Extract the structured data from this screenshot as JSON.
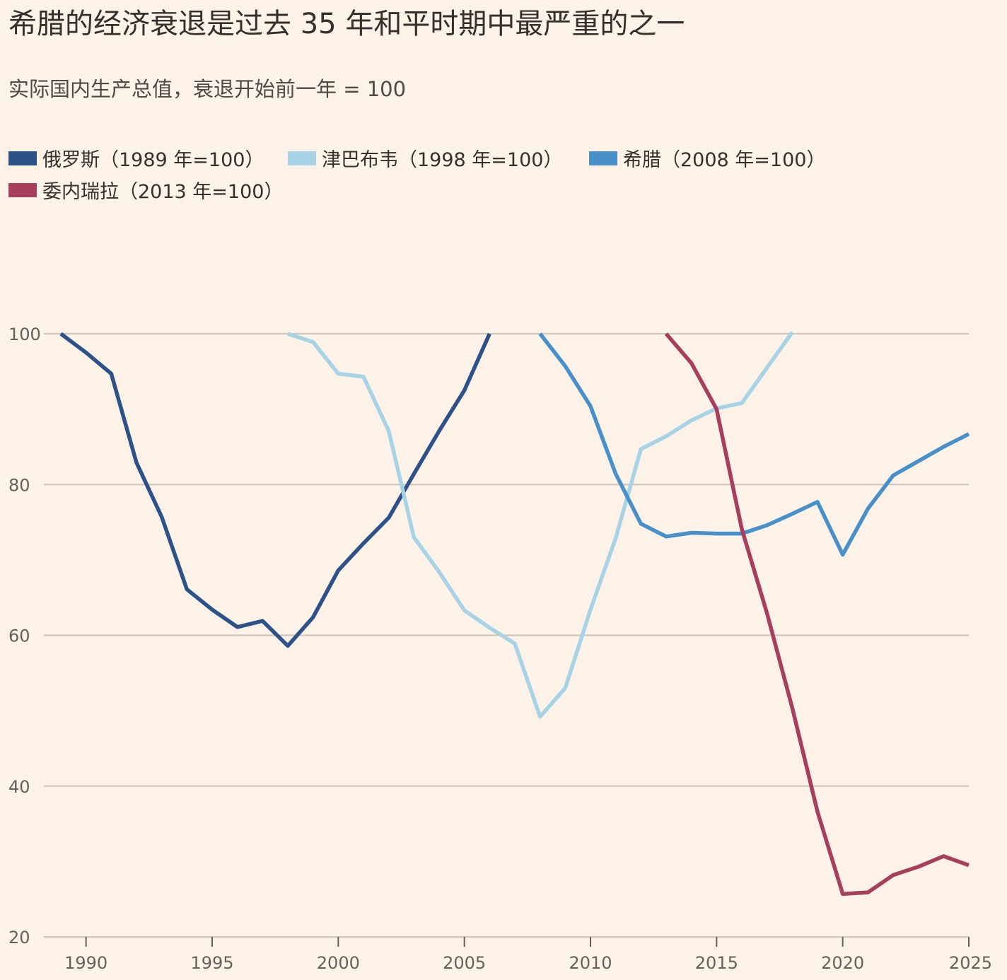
{
  "header": {
    "title": "希腊的经济衰退是过去 35 年和平时期中最严重的之一",
    "subtitle": "实际国内生产总值，衰退开始前一年 = 100"
  },
  "chart_data": {
    "type": "line",
    "x_ticks": [
      "1990",
      "1995",
      "2000",
      "2005",
      "2010",
      "2015",
      "2020",
      "2025"
    ],
    "y_ticks": [
      "100",
      "80",
      "60",
      "40",
      "20"
    ],
    "xlim": [
      1989,
      2025
    ],
    "ylim": [
      20,
      100
    ],
    "grid": true,
    "legend_position": "top-left",
    "series": [
      {
        "name": "俄罗斯（1989 年=100）",
        "color": "#2d5289",
        "x": [
          1989,
          1990,
          1991,
          1992,
          1993,
          1994,
          1995,
          1996,
          1997,
          1998,
          1999,
          2000,
          2001,
          2002,
          2003,
          2004,
          2005,
          2006
        ],
        "values": [
          100,
          97.5,
          94.7,
          82.9,
          75.7,
          66.1,
          63.4,
          61.1,
          61.9,
          58.6,
          62.4,
          68.6,
          72.2,
          75.6,
          81.4,
          87.1,
          92.5,
          100
        ]
      },
      {
        "name": "津巴布韦（1998 年=100）",
        "color": "#a8d3e6",
        "x": [
          1998,
          1999,
          2000,
          2001,
          2002,
          2003,
          2004,
          2005,
          2006,
          2007,
          2008,
          2009,
          2010,
          2011,
          2012,
          2013,
          2014,
          2015,
          2016,
          2017,
          2018
        ],
        "values": [
          100,
          98.9,
          94.7,
          94.3,
          87.1,
          73.0,
          68.4,
          63.3,
          61.0,
          58.9,
          49.2,
          53.0,
          63.4,
          72.9,
          84.7,
          86.4,
          88.5,
          90.1,
          90.8,
          95.5,
          100.2
        ]
      },
      {
        "name": "希腊（2008 年=100）",
        "color": "#4790c9",
        "x": [
          2008,
          2009,
          2010,
          2011,
          2012,
          2013,
          2014,
          2015,
          2016,
          2017,
          2018,
          2019,
          2020,
          2021,
          2022,
          2023,
          2024,
          2025
        ],
        "values": [
          100,
          95.7,
          90.4,
          81.4,
          74.8,
          73.1,
          73.6,
          73.5,
          73.5,
          74.6,
          76.1,
          77.7,
          70.7,
          76.8,
          81.2,
          83.1,
          85.0,
          86.7
        ]
      },
      {
        "name": "委内瑞拉（2013 年=100）",
        "color": "#a63e5c",
        "x": [
          2013,
          2014,
          2015,
          2016,
          2017,
          2018,
          2019,
          2020,
          2021,
          2022,
          2023,
          2024,
          2025
        ],
        "values": [
          100,
          96.1,
          90.0,
          74.1,
          62.9,
          50.4,
          36.6,
          25.7,
          25.9,
          28.2,
          29.3,
          30.7,
          29.5
        ]
      }
    ]
  }
}
